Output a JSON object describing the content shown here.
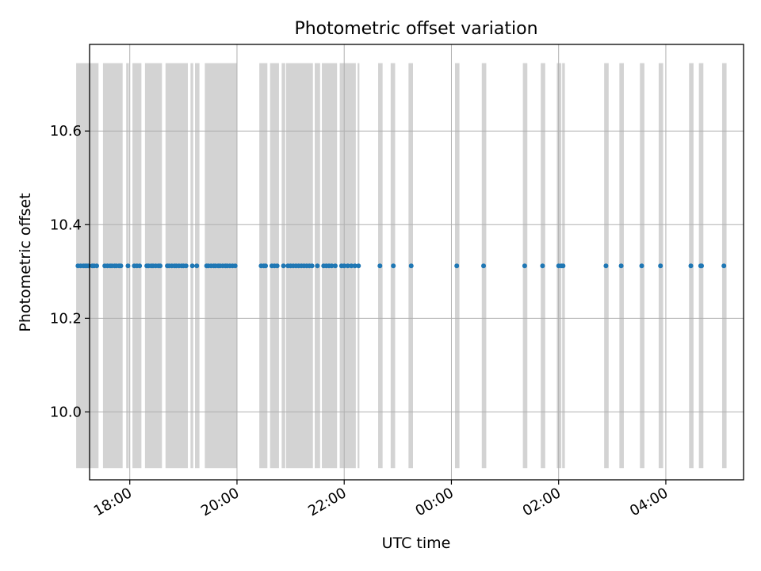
{
  "chart_data": {
    "type": "scatter",
    "title": "Photometric offset variation",
    "xlabel": "UTC time",
    "ylabel": "Photometric offset",
    "x_unit": "hours (UTC, continuing past midnight)",
    "xlim": [
      "17:15",
      "05:27"
    ],
    "ylim": [
      9.855,
      10.785
    ],
    "grid": true,
    "x_ticks": [
      {
        "value": "18:00",
        "label": "18:00"
      },
      {
        "value": "20:00",
        "label": "20:00"
      },
      {
        "value": "22:00",
        "label": "22:00"
      },
      {
        "value": "00:00",
        "label": "00:00"
      },
      {
        "value": "02:00",
        "label": "02:00"
      },
      {
        "value": "04:00",
        "label": "04:00"
      }
    ],
    "y_ticks": [
      {
        "value": 10.0,
        "label": "10.0"
      },
      {
        "value": 10.2,
        "label": "10.2"
      },
      {
        "value": 10.4,
        "label": "10.4"
      },
      {
        "value": 10.6,
        "label": "10.6"
      }
    ],
    "bands": {
      "color": "#d3d3d3",
      "y_range": [
        9.88,
        10.745
      ],
      "intervals": [
        [
          "17:00",
          "17:25"
        ],
        [
          "17:30",
          "17:52"
        ],
        [
          "17:56",
          "17:59"
        ],
        [
          "18:03",
          "18:13"
        ],
        [
          "18:17",
          "18:36"
        ],
        [
          "18:40",
          "19:05"
        ],
        [
          "19:08",
          "19:11"
        ],
        [
          "19:13",
          "19:18"
        ],
        [
          "19:24",
          "20:00"
        ],
        [
          "20:25",
          "20:34"
        ],
        [
          "20:37",
          "20:47"
        ],
        [
          "20:50",
          "20:54"
        ],
        [
          "20:55",
          "21:25"
        ],
        [
          "21:27",
          "21:33"
        ],
        [
          "21:35",
          "21:52"
        ],
        [
          "21:55",
          "22:13"
        ],
        [
          "22:15",
          "22:17"
        ],
        [
          "22:38",
          "22:43"
        ],
        [
          "22:52",
          "22:57"
        ],
        [
          "23:12",
          "23:17"
        ],
        [
          "00:04",
          "00:09"
        ],
        [
          "00:34",
          "00:39"
        ],
        [
          "01:20",
          "01:25"
        ],
        [
          "01:40",
          "01:45"
        ],
        [
          "01:58",
          "02:03"
        ],
        [
          "02:04",
          "02:07"
        ],
        [
          "02:51",
          "02:56"
        ],
        [
          "03:08",
          "03:13"
        ],
        [
          "03:31",
          "03:36"
        ],
        [
          "03:52",
          "03:57"
        ],
        [
          "04:26",
          "04:31"
        ],
        [
          "04:37",
          "04:42"
        ],
        [
          "05:03",
          "05:08"
        ]
      ]
    },
    "series": [
      {
        "color": "#1f77b4",
        "x": [
          "17:02",
          "17:05",
          "17:08",
          "17:10",
          "17:12",
          "17:14",
          "17:18",
          "17:20",
          "17:23",
          "17:32",
          "17:35",
          "17:38",
          "17:40",
          "17:43",
          "17:45",
          "17:48",
          "17:50",
          "17:58",
          "18:05",
          "18:08",
          "18:11",
          "18:19",
          "18:21",
          "18:24",
          "18:26",
          "18:29",
          "18:32",
          "18:34",
          "18:42",
          "18:44",
          "18:47",
          "18:50",
          "18:52",
          "18:55",
          "18:58",
          "19:00",
          "19:03",
          "19:10",
          "19:15",
          "19:26",
          "19:28",
          "19:31",
          "19:34",
          "19:36",
          "19:39",
          "19:41",
          "19:44",
          "19:47",
          "19:49",
          "19:52",
          "19:55",
          "19:58",
          "20:27",
          "20:30",
          "20:32",
          "20:39",
          "20:42",
          "20:45",
          "20:52",
          "20:57",
          "21:00",
          "21:03",
          "21:06",
          "21:09",
          "21:12",
          "21:15",
          "21:18",
          "21:21",
          "21:24",
          "21:30",
          "21:37",
          "21:40",
          "21:43",
          "21:46",
          "21:50",
          "21:57",
          "22:00",
          "22:04",
          "22:08",
          "22:12",
          "22:16",
          "22:40",
          "22:55",
          "23:15",
          "00:06",
          "00:36",
          "01:22",
          "01:42",
          "02:00",
          "02:03",
          "02:05",
          "02:53",
          "03:10",
          "03:33",
          "03:54",
          "04:28",
          "04:39",
          "04:40",
          "05:05"
        ],
        "y": [
          10.312,
          10.312,
          10.312,
          10.312,
          10.312,
          10.312,
          10.312,
          10.312,
          10.312,
          10.312,
          10.312,
          10.312,
          10.312,
          10.312,
          10.312,
          10.312,
          10.312,
          10.312,
          10.312,
          10.312,
          10.312,
          10.312,
          10.312,
          10.312,
          10.312,
          10.312,
          10.312,
          10.312,
          10.312,
          10.312,
          10.312,
          10.312,
          10.312,
          10.312,
          10.312,
          10.312,
          10.312,
          10.312,
          10.312,
          10.312,
          10.312,
          10.312,
          10.312,
          10.312,
          10.312,
          10.312,
          10.312,
          10.312,
          10.312,
          10.312,
          10.312,
          10.312,
          10.312,
          10.312,
          10.312,
          10.312,
          10.312,
          10.312,
          10.312,
          10.312,
          10.312,
          10.312,
          10.312,
          10.312,
          10.312,
          10.312,
          10.312,
          10.312,
          10.312,
          10.312,
          10.312,
          10.312,
          10.312,
          10.312,
          10.312,
          10.312,
          10.312,
          10.312,
          10.312,
          10.312,
          10.312,
          10.312,
          10.312,
          10.312,
          10.312,
          10.312,
          10.312,
          10.312,
          10.312,
          10.312,
          10.312,
          10.312,
          10.312,
          10.312,
          10.312,
          10.312,
          10.312,
          10.312,
          10.312
        ]
      }
    ]
  }
}
